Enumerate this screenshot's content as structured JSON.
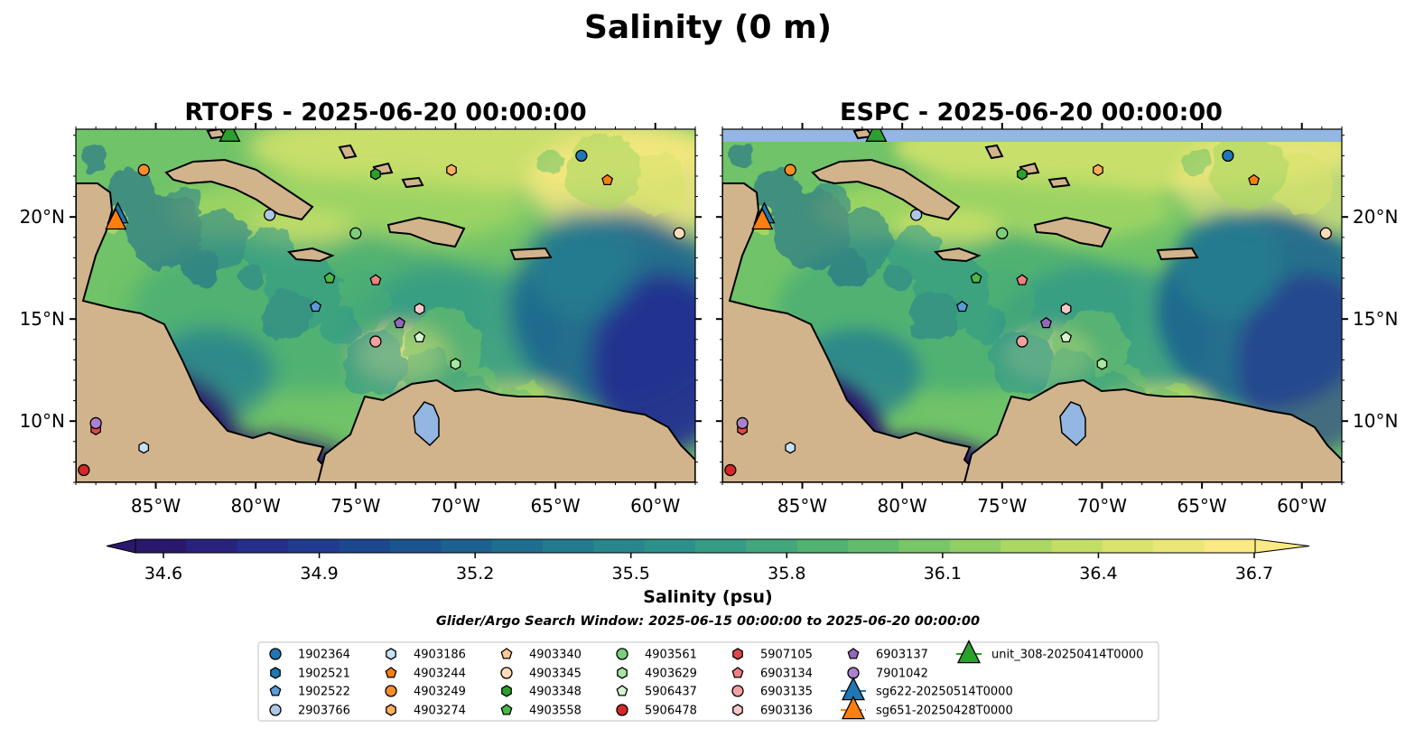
{
  "figure": {
    "suptitle": "Salinity (0 m)",
    "search_window": "Glider/Argo Search Window: 2025-06-15 00:00:00 to 2025-06-20 00:00:00"
  },
  "colors": {
    "ocean_ramp": [
      "#2a186c",
      "#24308f",
      "#1a4a8f",
      "#1c6590",
      "#267f8e",
      "#2f978a",
      "#4aae74",
      "#70c368",
      "#a5d762",
      "#d7e46b",
      "#fbe983"
    ],
    "land": "#d2b48c",
    "lakes": "#93b6e2",
    "rivers": "#a8b8cc"
  },
  "chart_data": {
    "type": "heatmap",
    "panels": [
      {
        "title": "RTOFS - 2025-06-20 00:00:00",
        "model": "RTOFS"
      },
      {
        "title": "ESPC - 2025-06-20 00:00:00",
        "model": "ESPC"
      }
    ],
    "xlim": [
      -89,
      -58
    ],
    "ylim": [
      7,
      24.3
    ],
    "xticks": [
      -85,
      -80,
      -75,
      -70,
      -65,
      -60
    ],
    "xtick_labels": [
      "85°W",
      "80°W",
      "75°W",
      "70°W",
      "65°W",
      "60°W"
    ],
    "yticks": [
      10,
      15,
      20
    ],
    "ytick_labels": [
      "10°N",
      "15°N",
      "20°N"
    ],
    "colorbar": {
      "label": "Salinity (psu)",
      "ticks": [
        34.6,
        34.9,
        35.2,
        35.5,
        35.8,
        36.1,
        36.4,
        36.7
      ],
      "tick_labels": [
        "34.6",
        "34.9",
        "35.2",
        "35.5",
        "35.8",
        "36.1",
        "36.4",
        "36.7"
      ],
      "range": [
        34.6,
        36.7
      ],
      "levels": 22,
      "extend": "both"
    },
    "legend_entries": [
      {
        "label": "1902364",
        "marker": "circle",
        "color": "#1f77b4",
        "lon": -63.7,
        "lat": 23.0
      },
      {
        "label": "1902521",
        "marker": "hexagon",
        "color": "#1f77b4",
        "lon": null,
        "lat": null
      },
      {
        "label": "1902522",
        "marker": "pentagon",
        "color": "#5a9bd5",
        "lon": -77.0,
        "lat": 15.6
      },
      {
        "label": "2903766",
        "marker": "circle",
        "color": "#aec7e8",
        "lon": -79.3,
        "lat": 20.1
      },
      {
        "label": "4903186",
        "marker": "hexagon",
        "color": "#c6e2f5",
        "lon": -85.6,
        "lat": 8.7
      },
      {
        "label": "4903244",
        "marker": "pentagon",
        "color": "#ff7f0e",
        "lon": -62.4,
        "lat": 21.8
      },
      {
        "label": "4903249",
        "marker": "circle",
        "color": "#ff8c28",
        "lon": -85.6,
        "lat": 22.3
      },
      {
        "label": "4903274",
        "marker": "hexagon",
        "color": "#ffae5c",
        "lon": -70.2,
        "lat": 22.3
      },
      {
        "label": "4903340",
        "marker": "pentagon",
        "color": "#ffc896",
        "lon": null,
        "lat": null
      },
      {
        "label": "4903345",
        "marker": "circle",
        "color": "#ffdcb8",
        "lon": -58.8,
        "lat": 19.2
      },
      {
        "label": "4903348",
        "marker": "hexagon",
        "color": "#2ca02c",
        "lon": -74.0,
        "lat": 22.1
      },
      {
        "label": "4903558",
        "marker": "pentagon",
        "color": "#48b848",
        "lon": -76.3,
        "lat": 17.0
      },
      {
        "label": "4903561",
        "marker": "circle",
        "color": "#7ccd7c",
        "lon": -75.0,
        "lat": 19.2
      },
      {
        "label": "4903629",
        "marker": "hexagon",
        "color": "#a8e6a0",
        "lon": -70.0,
        "lat": 12.8
      },
      {
        "label": "5906437",
        "marker": "pentagon",
        "color": "#d6f5ce",
        "lon": -71.8,
        "lat": 14.1
      },
      {
        "label": "5906478",
        "marker": "circle",
        "color": "#d62728",
        "lon": -88.6,
        "lat": 7.6
      },
      {
        "label": "5907105",
        "marker": "hexagon",
        "color": "#e04848",
        "lon": -88.0,
        "lat": 9.6
      },
      {
        "label": "6903134",
        "marker": "pentagon",
        "color": "#f08080",
        "lon": -74.0,
        "lat": 16.9
      },
      {
        "label": "6903135",
        "marker": "circle",
        "color": "#f4a0a0",
        "lon": -74.0,
        "lat": 13.9
      },
      {
        "label": "6903136",
        "marker": "hexagon",
        "color": "#f8c8c8",
        "lon": -71.8,
        "lat": 15.5
      },
      {
        "label": "6903137",
        "marker": "pentagon",
        "color": "#9467bd",
        "lon": -72.8,
        "lat": 14.8
      },
      {
        "label": "7901042",
        "marker": "circle",
        "color": "#a982cf",
        "lon": -88.0,
        "lat": 9.9
      },
      {
        "label": "sg622-20250514T0000",
        "marker": "triangle",
        "color": "#1f77b4",
        "lon": -86.9,
        "lat": 20.1
      },
      {
        "label": "sg651-20250428T0000",
        "marker": "triangle",
        "color": "#ff7f0e",
        "lon": -87.0,
        "lat": 19.8
      },
      {
        "label": "unit_308-20250414T0000",
        "marker": "triangle",
        "color": "#2ca02c",
        "lon": -81.3,
        "lat": 24.1
      }
    ]
  }
}
